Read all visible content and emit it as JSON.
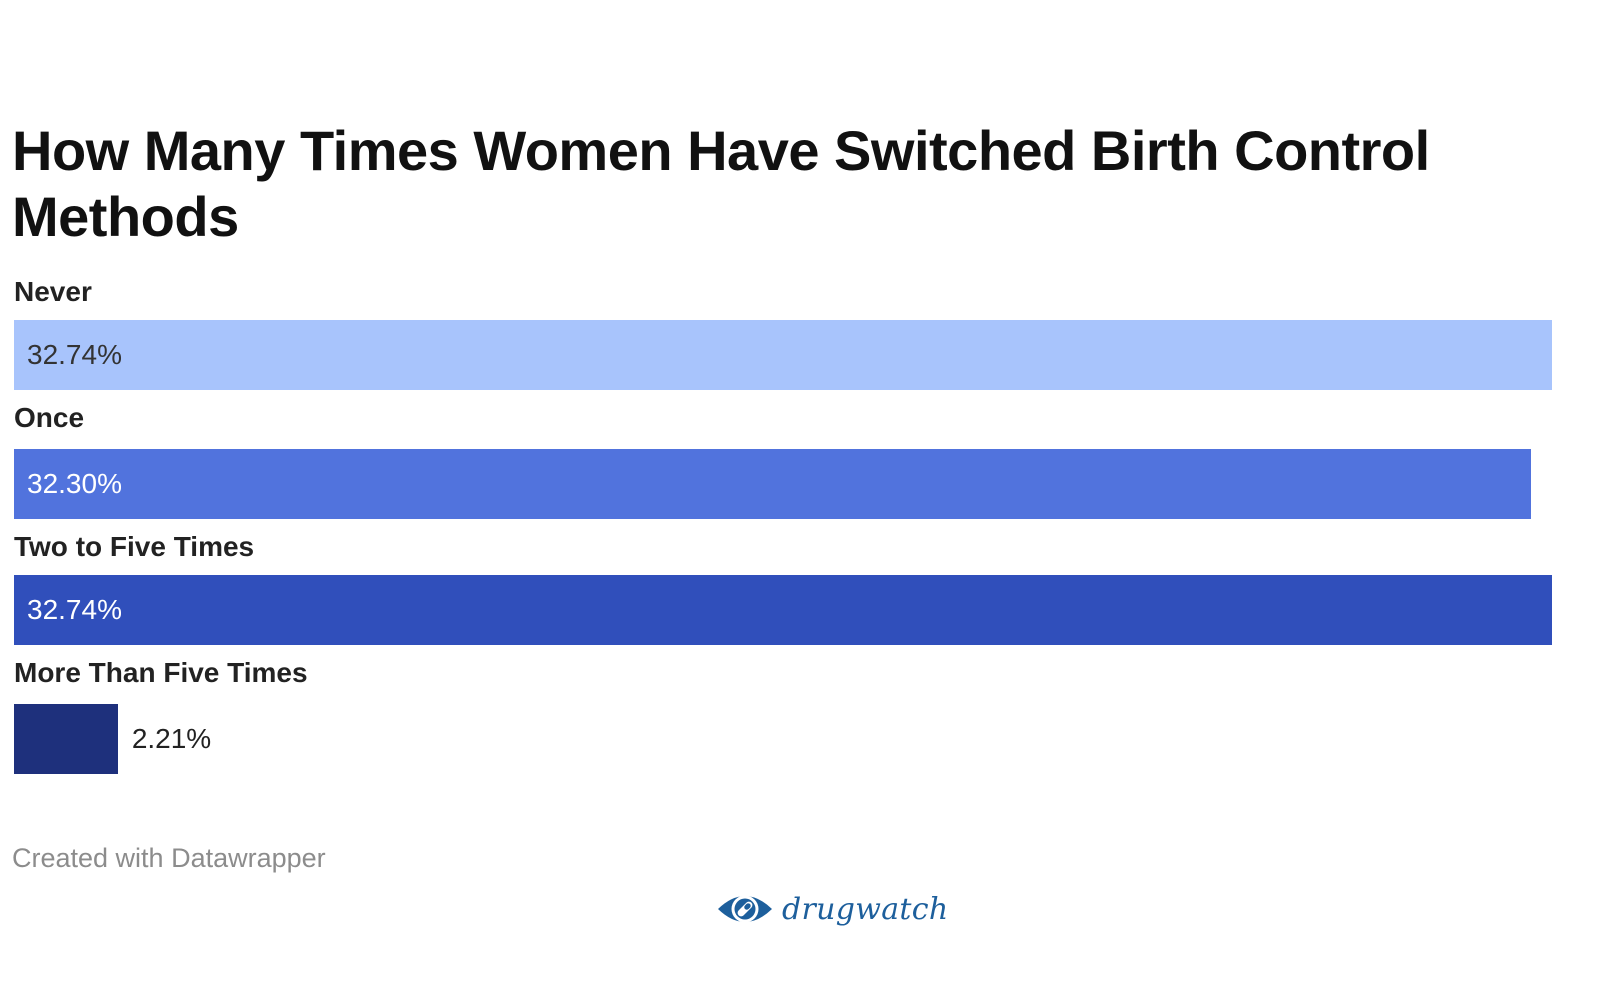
{
  "title": "How Many Times Women Have Switched Birth Control Methods",
  "credit": "Created with Datawrapper",
  "brand": "drugwatch",
  "icons": {
    "brand_logo": "pill-eye-icon"
  },
  "colors": {
    "brand": "#1d5f9c",
    "series": [
      "#a8c4fc",
      "#5173dd",
      "#304fbb",
      "#1e307c"
    ]
  },
  "chart_data": {
    "type": "bar",
    "orientation": "horizontal",
    "title": "How Many Times Women Have Switched Birth Control Methods",
    "categories": [
      "Never",
      "Once",
      "Two to Five Times",
      "More Than Five Times"
    ],
    "values": [
      32.74,
      32.3,
      32.74,
      2.21
    ],
    "value_labels": [
      "32.74%",
      "32.30%",
      "32.74%",
      "2.21%"
    ],
    "xlim": [
      0,
      32.74
    ],
    "grid": false,
    "legend": "none"
  }
}
